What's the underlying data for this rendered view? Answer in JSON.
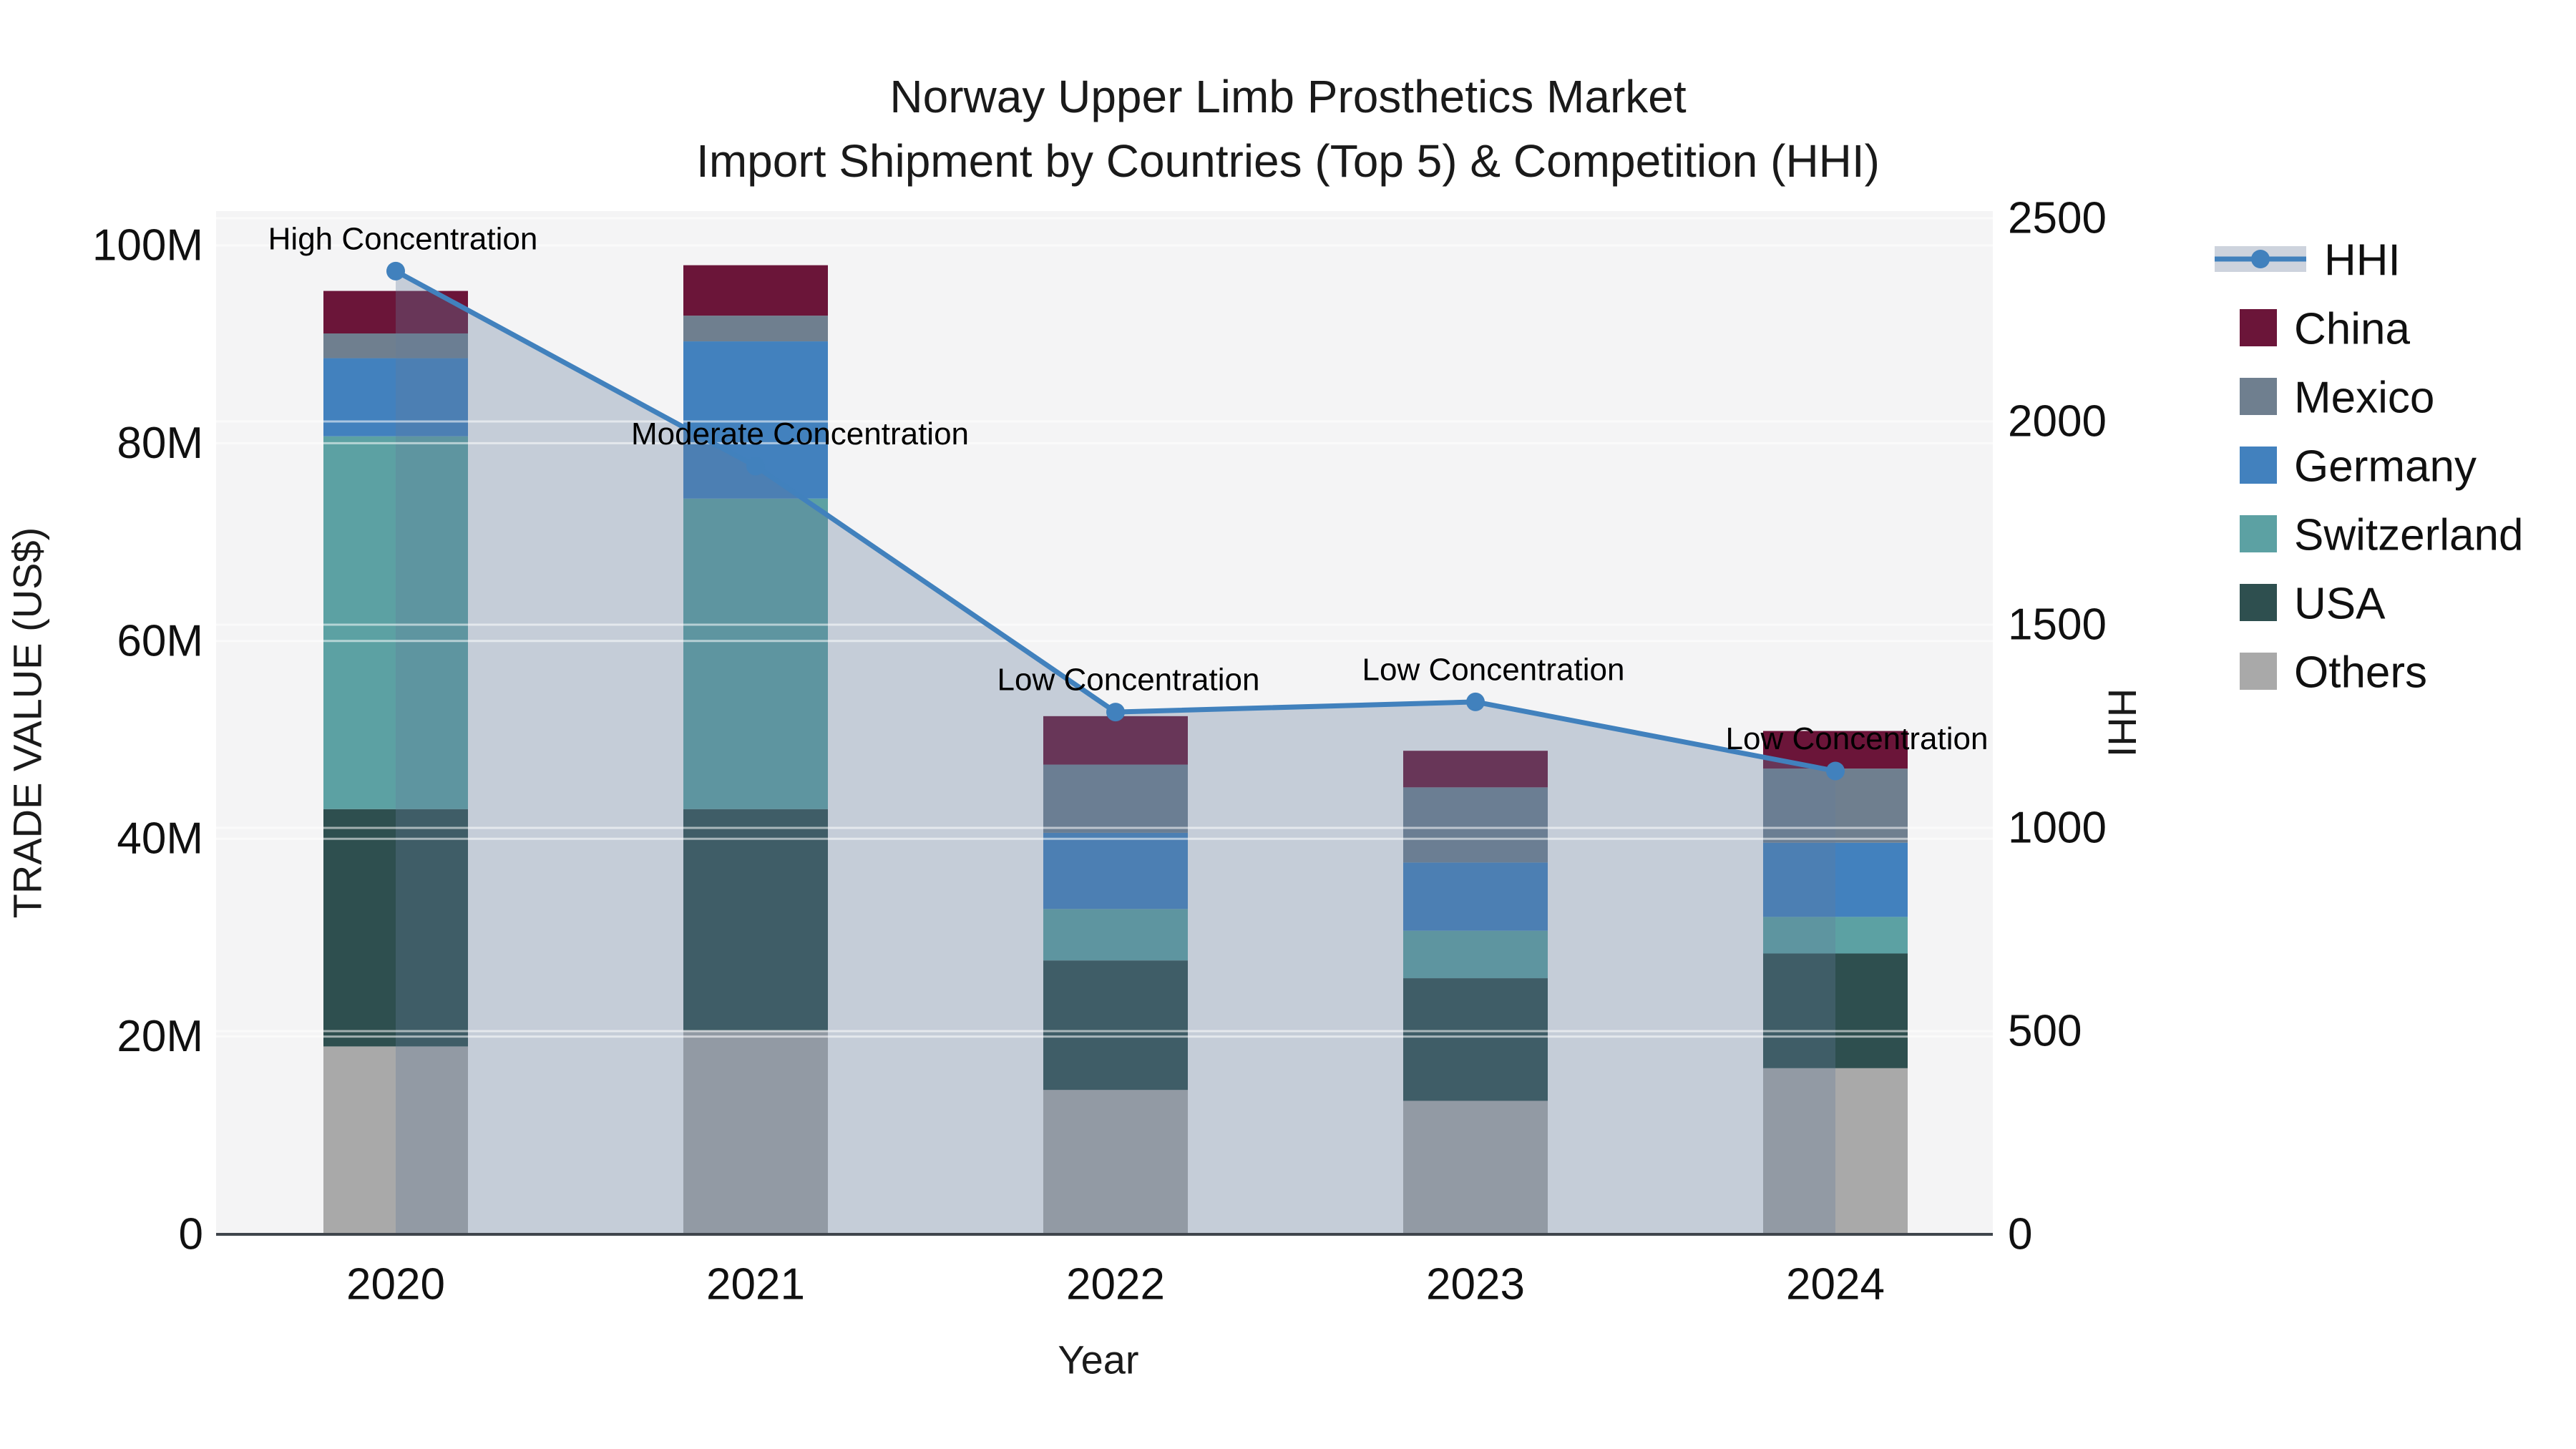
{
  "title": {
    "line1": "Norway Upper Limb Prosthetics Market",
    "line2": "Import Shipment by Countries (Top 5) & Competition (HHI)"
  },
  "axes": {
    "x": {
      "title": "Year",
      "tick_labels": [
        "2020",
        "2021",
        "2022",
        "2023",
        "2024"
      ]
    },
    "y_left": {
      "title": "TRADE VALUE (US$)",
      "tick_labels": [
        "0",
        "20M",
        "40M",
        "60M",
        "80M",
        "100M"
      ],
      "range": [
        0,
        100000000
      ]
    },
    "y_right": {
      "title": "HHI",
      "tick_labels": [
        "0",
        "500",
        "1000",
        "1500",
        "2000",
        "2500"
      ],
      "range": [
        0,
        2500
      ]
    }
  },
  "legend": {
    "items": [
      {
        "label": "HHI",
        "type": "line",
        "color": "#4181bd"
      },
      {
        "label": "China",
        "type": "swatch",
        "color": "#6b1539"
      },
      {
        "label": "Mexico",
        "type": "swatch",
        "color": "#6f7f8f"
      },
      {
        "label": "Germany",
        "type": "swatch",
        "color": "#4281be"
      },
      {
        "label": "Switzerland",
        "type": "swatch",
        "color": "#5ca1a3"
      },
      {
        "label": "USA",
        "type": "swatch",
        "color": "#2e4f4f"
      },
      {
        "label": "Others",
        "type": "swatch",
        "color": "#a9a9a9"
      }
    ]
  },
  "chart_data": {
    "type": "bar",
    "subtype": "stacked-bars-with-line-on-secondary-axis",
    "title": "Norway Upper Limb Prosthetics Market — Import Shipment by Countries (Top 5) & Competition (HHI)",
    "categories": [
      "2020",
      "2021",
      "2022",
      "2023",
      "2024"
    ],
    "unit": "US$ millions",
    "series": [
      {
        "name": "Others",
        "color": "#a9a9a9",
        "values": [
          19.0,
          20.6,
          14.6,
          13.5,
          16.8
        ]
      },
      {
        "name": "USA",
        "color": "#2e4f4f",
        "values": [
          24.0,
          22.4,
          13.1,
          12.4,
          11.6
        ]
      },
      {
        "name": "Switzerland",
        "color": "#5ca1a3",
        "values": [
          37.7,
          31.4,
          5.2,
          4.8,
          3.7
        ]
      },
      {
        "name": "Germany",
        "color": "#4281be",
        "values": [
          7.9,
          15.9,
          7.7,
          6.9,
          7.5
        ]
      },
      {
        "name": "Mexico",
        "color": "#6f7f8f",
        "values": [
          2.5,
          2.6,
          6.9,
          7.6,
          7.5
        ]
      },
      {
        "name": "China",
        "color": "#6b1539",
        "values": [
          4.3,
          5.1,
          4.9,
          3.7,
          3.8
        ]
      }
    ],
    "stack_totals_millions": [
      95.4,
      98.0,
      52.4,
      48.9,
      50.9
    ],
    "line_series": {
      "name": "HHI",
      "axis": "right",
      "color": "#4181bd",
      "area_fill": "rgba(99,125,155,0.32)",
      "values": [
        2370,
        1890,
        1285,
        1310,
        1140
      ]
    },
    "annotations": [
      {
        "category": "2020",
        "label": "High Concentration"
      },
      {
        "category": "2021",
        "label": "Moderate Concentration"
      },
      {
        "category": "2022",
        "label": "Low Concentration"
      },
      {
        "category": "2023",
        "label": "Low Concentration"
      },
      {
        "category": "2024",
        "label": "Low Concentration"
      }
    ],
    "xlabel": "Year",
    "ylabel": "TRADE VALUE (US$)",
    "ylabel_right": "HHI",
    "ylim_left": [
      0,
      100000000
    ],
    "ylim_right": [
      0,
      2500
    ],
    "grid": true,
    "legend_position": "right",
    "plot_background": "#f4f4f5"
  }
}
